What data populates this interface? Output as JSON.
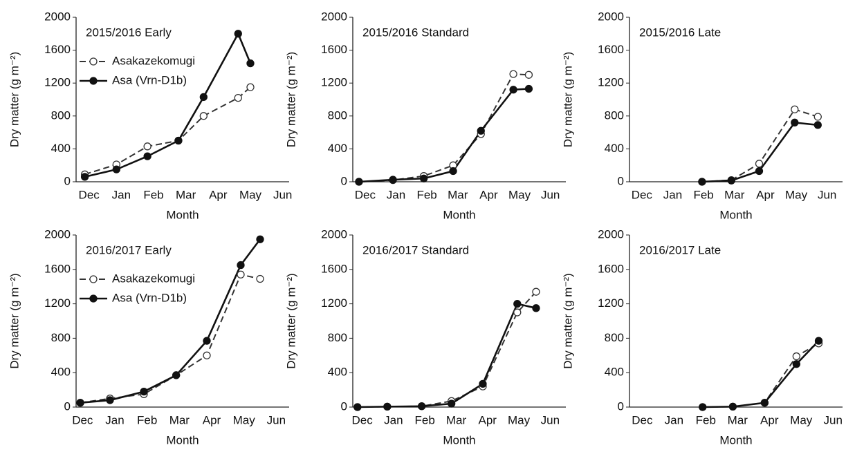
{
  "chart_data": [
    {
      "type": "line",
      "title": "2015/2016 Early",
      "x_label": "Month",
      "y_label": "Dry matter (g m⁻²)",
      "legend": true,
      "xlim": [
        -0.4,
        6.2
      ],
      "ylim": [
        0,
        2000
      ],
      "yticks": [
        0,
        400,
        800,
        1200,
        1600,
        2000
      ],
      "xticks": [
        {
          "value": 0,
          "label": "Dec"
        },
        {
          "value": 1,
          "label": "Jan"
        },
        {
          "value": 2,
          "label": "Feb"
        },
        {
          "value": 3,
          "label": "Mar"
        },
        {
          "value": 4,
          "label": "Apr"
        },
        {
          "value": 5,
          "label": "May"
        },
        {
          "value": 6,
          "label": "Jun"
        }
      ],
      "x": [
        -0.13,
        0.85,
        1.81,
        2.77,
        3.55,
        4.62,
        5.0
      ],
      "series": [
        {
          "name": "Asakazekomugi",
          "color": "#333333",
          "line_style": "dashed",
          "marker": "open",
          "values": [
            90,
            210,
            430,
            500,
            800,
            1020,
            1150
          ]
        },
        {
          "name": "Asa (Vrn-D1b)",
          "color": "#111111",
          "line_style": "solid",
          "marker": "filled",
          "values": [
            60,
            150,
            310,
            500,
            1030,
            1800,
            1440
          ]
        }
      ]
    },
    {
      "type": "line",
      "title": "2015/2016 Standard",
      "x_label": "Month",
      "y_label": "Dry matter (g m⁻²)",
      "xlim": [
        -0.4,
        6.5
      ],
      "ylim": [
        0,
        2000
      ],
      "yticks": [
        0,
        400,
        800,
        1200,
        1600,
        2000
      ],
      "xticks": [
        {
          "value": 0,
          "label": "Dec"
        },
        {
          "value": 1,
          "label": "Jan"
        },
        {
          "value": 2,
          "label": "Feb"
        },
        {
          "value": 3,
          "label": "Mar"
        },
        {
          "value": 4,
          "label": "Apr"
        },
        {
          "value": 5,
          "label": "May"
        },
        {
          "value": 6,
          "label": "Jun"
        }
      ],
      "x": [
        -0.2,
        0.9,
        1.9,
        2.85,
        3.75,
        4.8,
        5.3
      ],
      "series": [
        {
          "color": "#333333",
          "line_style": "dashed",
          "marker": "open",
          "values": [
            0,
            20,
            70,
            200,
            580,
            1310,
            1300
          ]
        },
        {
          "color": "#111111",
          "line_style": "solid",
          "marker": "filled",
          "values": [
            0,
            25,
            40,
            130,
            620,
            1120,
            1130
          ]
        }
      ]
    },
    {
      "type": "line",
      "title": "2015/2016 Late",
      "x_label": "Month",
      "y_label": "Dry matter (g m⁻²)",
      "xlim": [
        -0.4,
        6.5
      ],
      "ylim": [
        0,
        2000
      ],
      "yticks": [
        0,
        400,
        800,
        1200,
        1600,
        2000
      ],
      "xticks": [
        {
          "value": 0,
          "label": "Dec"
        },
        {
          "value": 1,
          "label": "Jan"
        },
        {
          "value": 2,
          "label": "Feb"
        },
        {
          "value": 3,
          "label": "Mar"
        },
        {
          "value": 4,
          "label": "Apr"
        },
        {
          "value": 5,
          "label": "May"
        },
        {
          "value": 6,
          "label": "Jun"
        }
      ],
      "x": [
        1.95,
        2.9,
        3.8,
        4.95,
        5.7
      ],
      "series": [
        {
          "color": "#333333",
          "line_style": "dashed",
          "marker": "open",
          "values": [
            0,
            20,
            220,
            880,
            790
          ]
        },
        {
          "color": "#111111",
          "line_style": "solid",
          "marker": "filled",
          "values": [
            0,
            15,
            130,
            720,
            690
          ]
        }
      ]
    },
    {
      "type": "line",
      "title": "2016/2017 Early",
      "x_label": "Month",
      "y_label": "Dry matter (g m⁻²)",
      "legend": true,
      "xlim": [
        -0.2,
        6.4
      ],
      "ylim": [
        0,
        2000
      ],
      "yticks": [
        0,
        400,
        800,
        1200,
        1600,
        2000
      ],
      "xticks": [
        {
          "value": 0,
          "label": "Dec"
        },
        {
          "value": 1,
          "label": "Jan"
        },
        {
          "value": 2,
          "label": "Feb"
        },
        {
          "value": 3,
          "label": "Mar"
        },
        {
          "value": 4,
          "label": "Apr"
        },
        {
          "value": 5,
          "label": "May"
        },
        {
          "value": 6,
          "label": "Jun"
        }
      ],
      "x": [
        -0.07,
        0.85,
        1.9,
        2.9,
        3.85,
        4.9,
        5.5
      ],
      "series": [
        {
          "name": "Asakazekomugi",
          "color": "#333333",
          "line_style": "dashed",
          "marker": "open",
          "values": [
            50,
            100,
            150,
            370,
            600,
            1540,
            1490
          ]
        },
        {
          "name": "Asa (Vrn-D1b)",
          "color": "#111111",
          "line_style": "solid",
          "marker": "filled",
          "values": [
            50,
            80,
            180,
            370,
            770,
            1650,
            1950
          ]
        }
      ]
    },
    {
      "type": "line",
      "title": "2016/2017 Standard",
      "x_label": "Month",
      "y_label": "Dry matter (g m⁻²)",
      "xlim": [
        -0.3,
        6.5
      ],
      "ylim": [
        0,
        2000
      ],
      "yticks": [
        0,
        400,
        800,
        1200,
        1600,
        2000
      ],
      "xticks": [
        {
          "value": 0,
          "label": "Dec"
        },
        {
          "value": 1,
          "label": "Jan"
        },
        {
          "value": 2,
          "label": "Feb"
        },
        {
          "value": 3,
          "label": "Mar"
        },
        {
          "value": 4,
          "label": "Apr"
        },
        {
          "value": 5,
          "label": "May"
        },
        {
          "value": 6,
          "label": "Jun"
        }
      ],
      "x": [
        -0.15,
        0.8,
        1.9,
        2.85,
        3.85,
        4.95,
        5.55
      ],
      "series": [
        {
          "color": "#333333",
          "line_style": "dashed",
          "marker": "open",
          "values": [
            0,
            5,
            10,
            70,
            240,
            1100,
            1340
          ]
        },
        {
          "color": "#111111",
          "line_style": "solid",
          "marker": "filled",
          "values": [
            0,
            5,
            10,
            40,
            270,
            1200,
            1150
          ]
        }
      ]
    },
    {
      "type": "line",
      "title": "2016/2017 Late",
      "x_label": "Month",
      "y_label": "Dry matter (g m⁻²)",
      "xlim": [
        -0.4,
        6.3
      ],
      "ylim": [
        0,
        2000
      ],
      "yticks": [
        0,
        400,
        800,
        1200,
        1600,
        2000
      ],
      "xticks": [
        {
          "value": 0,
          "label": "Dec"
        },
        {
          "value": 1,
          "label": "Jan"
        },
        {
          "value": 2,
          "label": "Feb"
        },
        {
          "value": 3,
          "label": "Mar"
        },
        {
          "value": 4,
          "label": "Apr"
        },
        {
          "value": 5,
          "label": "May"
        },
        {
          "value": 6,
          "label": "Jun"
        }
      ],
      "x": [
        1.9,
        2.85,
        3.85,
        4.85,
        5.55
      ],
      "series": [
        {
          "color": "#333333",
          "line_style": "dashed",
          "marker": "open",
          "values": [
            0,
            5,
            50,
            590,
            740
          ]
        },
        {
          "color": "#111111",
          "line_style": "solid",
          "marker": "filled",
          "values": [
            0,
            5,
            50,
            500,
            770
          ]
        }
      ]
    }
  ]
}
